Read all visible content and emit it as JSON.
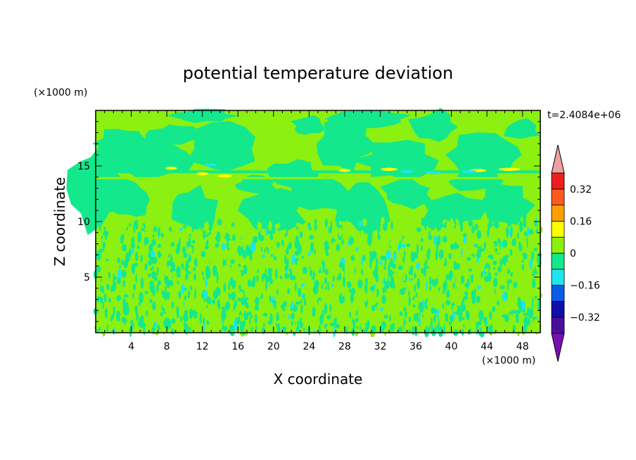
{
  "chart_data": {
    "type": "heatmap",
    "title": "potential temperature deviation",
    "time_label": "t=2.4084e+06",
    "xlabel": "X coordinate",
    "ylabel": "Z coordinate",
    "x_unit": "(×1000 m)",
    "y_unit": "(×1000 m)",
    "xlim": [
      0,
      50
    ],
    "ylim": [
      0,
      20
    ],
    "x_ticks": [
      4,
      8,
      12,
      16,
      20,
      24,
      28,
      32,
      36,
      40,
      44,
      48
    ],
    "y_ticks": [
      5,
      10,
      15
    ],
    "x_tick_labels": [
      "4",
      "8",
      "12",
      "16",
      "20",
      "24",
      "28",
      "32",
      "36",
      "40",
      "44",
      "48"
    ],
    "y_tick_labels": [
      "5",
      "10",
      "15"
    ],
    "colorbar": {
      "levels": [
        -0.4,
        -0.32,
        -0.24,
        -0.16,
        -0.08,
        0,
        0.08,
        0.16,
        0.24,
        0.32,
        0.4
      ],
      "labels": [
        "0.32",
        "0.16",
        "0",
        "-0.16",
        "-0.32"
      ],
      "label_values": [
        0.32,
        0.16,
        0,
        -0.16,
        -0.32
      ],
      "colors": [
        "#7a10b0",
        "#4b0f9c",
        "#1010a8",
        "#0a5ce6",
        "#1ee6ee",
        "#14e88c",
        "#8cf010",
        "#ffff00",
        "#ffa000",
        "#ff5a1e",
        "#ee1e1e",
        "#f0a0a0"
      ],
      "extend": "both"
    },
    "fields_summary": [
      {
        "region": "z 0-9",
        "description": "small-scale alternating",
        "values": [
          -0.08,
          0.08
        ]
      },
      {
        "region": "z 9-14",
        "description": "large green/lime regions",
        "values": [
          -0.08,
          0.08
        ]
      },
      {
        "region": "z ~14.5",
        "description": "thin layer with warm/cool patches",
        "values": [
          -0.16,
          0.16
        ]
      },
      {
        "region": "z 15-20",
        "description": "large lime/green patches",
        "values": [
          -0.08,
          0.08
        ]
      }
    ]
  }
}
